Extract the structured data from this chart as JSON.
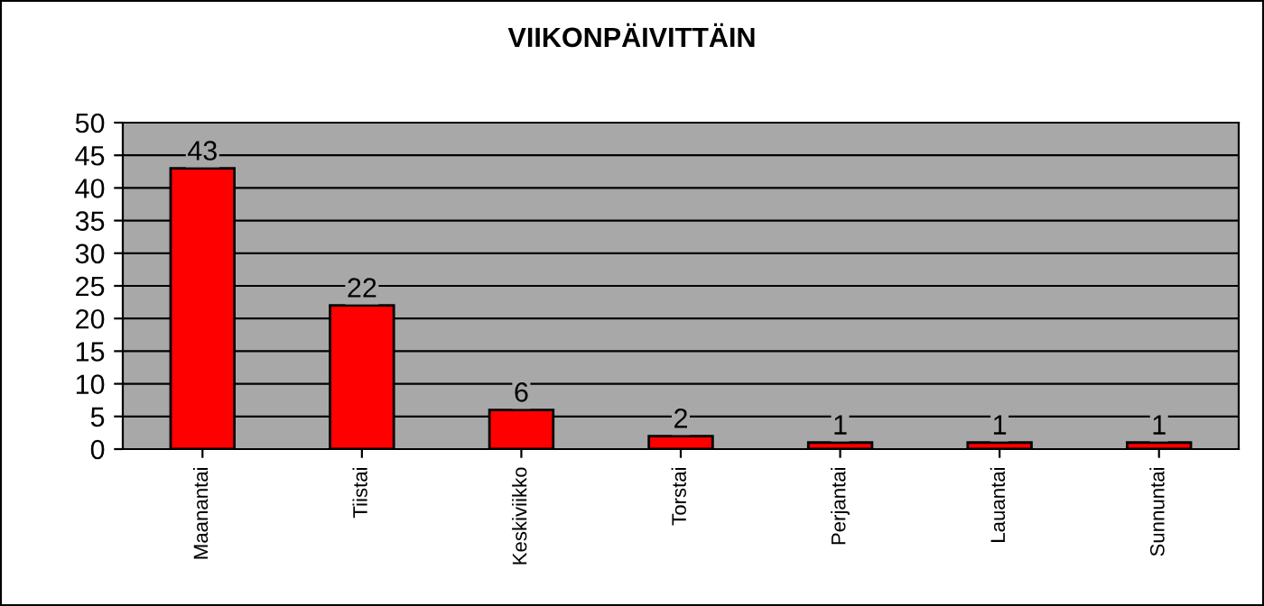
{
  "chart_data": {
    "type": "bar",
    "title": "VIIKONPÄIVITTÄIN",
    "categories": [
      "Maanantai",
      "Tiistai",
      "Keskiviikko",
      "Torstai",
      "Perjantai",
      "Lauantai",
      "Sunnuntai"
    ],
    "values": [
      43,
      22,
      6,
      2,
      1,
      1,
      1
    ],
    "color": "#ff0000",
    "ylim": [
      0,
      50
    ],
    "yticks": [
      0,
      5,
      10,
      15,
      20,
      25,
      30,
      35,
      40,
      45,
      50
    ],
    "grid": "y",
    "data_labels": true
  }
}
